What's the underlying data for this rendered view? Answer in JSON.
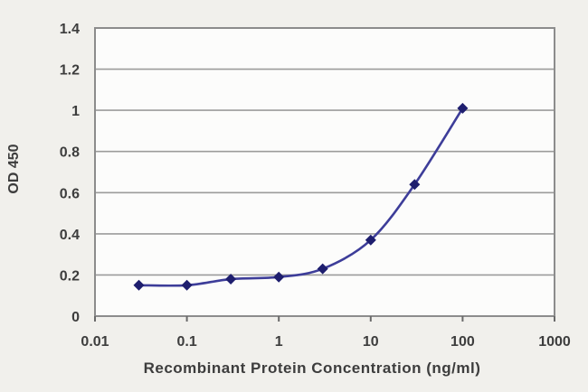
{
  "chart_data": {
    "type": "line",
    "title": "",
    "xlabel": "Recombinant Protein Concentration (ng/ml)",
    "ylabel": "OD 450",
    "x_scale": "log",
    "x": [
      0.03,
      0.1,
      0.3,
      1,
      3,
      10,
      30,
      100
    ],
    "series": [
      {
        "name": "OD 450",
        "values": [
          0.15,
          0.15,
          0.18,
          0.19,
          0.23,
          0.37,
          0.64,
          1.01
        ]
      }
    ],
    "xlim": [
      0.01,
      1000
    ],
    "ylim": [
      0,
      1.4
    ],
    "x_ticks": [
      0.01,
      0.1,
      1,
      10,
      100,
      1000
    ],
    "x_tick_labels": [
      "0.01",
      "0.1",
      "1",
      "10",
      "100",
      "1000"
    ],
    "y_ticks": [
      0,
      0.2,
      0.4,
      0.6,
      0.8,
      1,
      1.2,
      1.4
    ],
    "y_tick_labels": [
      "0",
      "0.2",
      "0.4",
      "0.6",
      "0.8",
      "1",
      "1.2",
      "1.4"
    ],
    "grid": "horizontal",
    "legend": "none",
    "marker": "diamond",
    "colors": {
      "line": "#3d3d99",
      "marker": "#1e1e6e",
      "gridline": "#9b9b9b",
      "plot_border": "#8c8c8c",
      "plot_background": "#fcfcfb",
      "canvas_background": "#f1f0ec",
      "text": "#3d3d3d"
    }
  }
}
